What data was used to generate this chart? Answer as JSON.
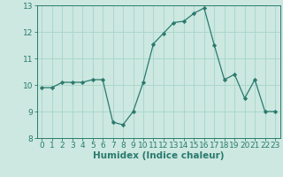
{
  "x": [
    0,
    1,
    2,
    3,
    4,
    5,
    6,
    7,
    8,
    9,
    10,
    11,
    12,
    13,
    14,
    15,
    16,
    17,
    18,
    19,
    20,
    21,
    22,
    23
  ],
  "y": [
    9.9,
    9.9,
    10.1,
    10.1,
    10.1,
    10.2,
    10.2,
    8.6,
    8.5,
    9.0,
    10.1,
    11.55,
    11.95,
    12.35,
    12.4,
    12.7,
    12.9,
    11.5,
    10.2,
    10.4,
    9.5,
    10.2,
    9.0,
    9.0
  ],
  "line_color": "#2a7a6e",
  "marker": "D",
  "marker_size": 2.2,
  "bg_color": "#cce8e0",
  "grid_color": "#a8d4ca",
  "xlabel": "Humidex (Indice chaleur)",
  "xlabel_fontsize": 7.5,
  "tick_fontsize": 6.5,
  "xlim": [
    -0.5,
    23.5
  ],
  "ylim": [
    8,
    13
  ],
  "yticks": [
    8,
    9,
    10,
    11,
    12,
    13
  ],
  "xticks": [
    0,
    1,
    2,
    3,
    4,
    5,
    6,
    7,
    8,
    9,
    10,
    11,
    12,
    13,
    14,
    15,
    16,
    17,
    18,
    19,
    20,
    21,
    22,
    23
  ]
}
